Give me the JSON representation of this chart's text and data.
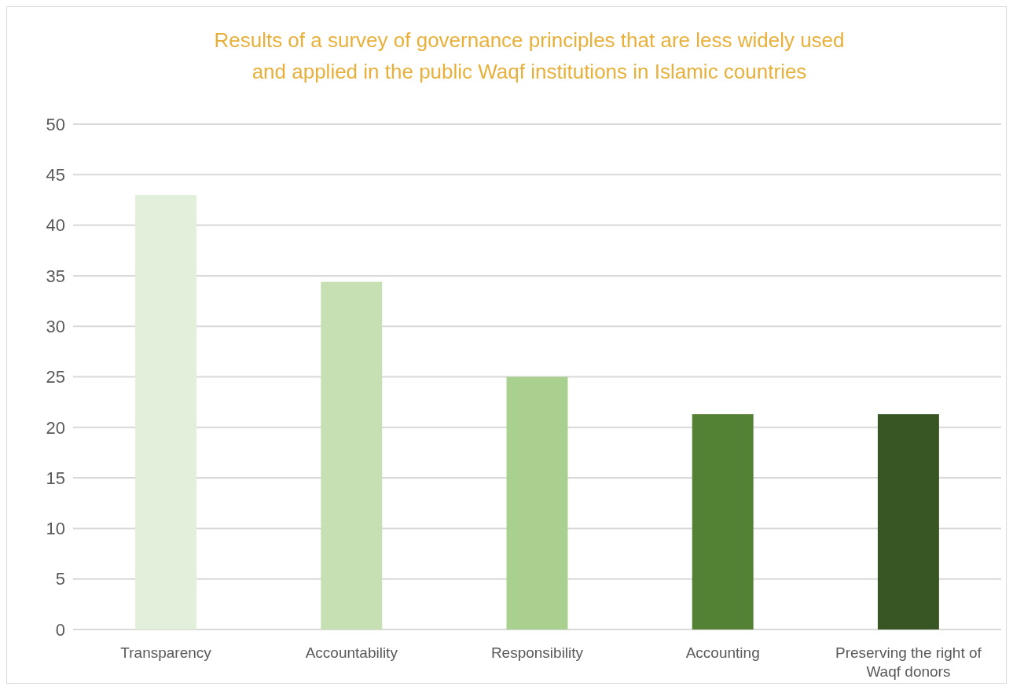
{
  "chart_data": {
    "type": "bar",
    "title": "Results of a survey of governance principles that are less widely used and applied in the public Waqf institutions in Islamic countries",
    "categories": [
      "Transparency",
      "Accountability",
      "Responsibility",
      "Accounting",
      "Preserving the right of Waqf donors"
    ],
    "values": [
      43,
      34.4,
      25,
      21.3,
      21.3
    ],
    "colors": [
      "#e2efda",
      "#c6e0b4",
      "#a9d08e",
      "#548235",
      "#375623"
    ],
    "ylim": [
      0,
      50
    ],
    "yticks": [
      0,
      5,
      10,
      15,
      20,
      25,
      30,
      35,
      40,
      45,
      50
    ],
    "grid": "y"
  }
}
